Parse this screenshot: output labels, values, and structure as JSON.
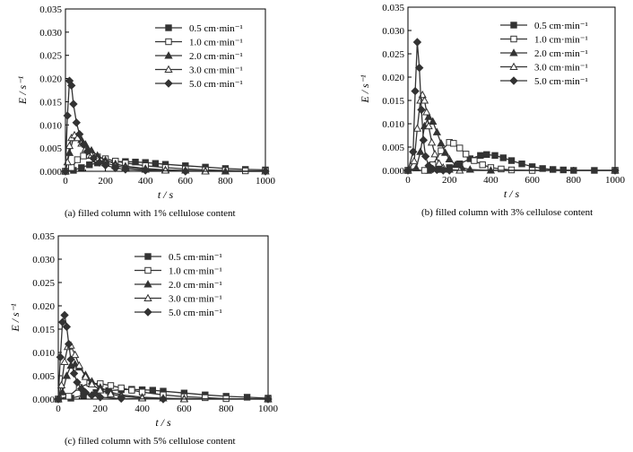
{
  "chart_data": [
    {
      "type": "line",
      "caption": "(a) filled column with 1% cellulose content",
      "xlabel": "t / s",
      "ylabel": "E / s⁻¹",
      "xlim": [
        0,
        1000
      ],
      "ylim": [
        0,
        0.035
      ],
      "xticks": [
        "0",
        "200",
        "400",
        "600",
        "800",
        "1000"
      ],
      "yticks": [
        "0.000",
        "0.005",
        "0.010",
        "0.015",
        "0.020",
        "0.025",
        "0.030",
        "0.035"
      ],
      "grid": false,
      "legend_position": "top-right",
      "series": [
        {
          "name": "0.5 cm·min⁻¹",
          "marker": "square-filled",
          "x": [
            0,
            40,
            80,
            120,
            160,
            200,
            250,
            300,
            350,
            400,
            450,
            500,
            600,
            700,
            800,
            900,
            1000
          ],
          "y": [
            0,
            0.0002,
            0.0008,
            0.0014,
            0.0018,
            0.002,
            0.0021,
            0.0021,
            0.002,
            0.0019,
            0.0017,
            0.0015,
            0.0012,
            0.0009,
            0.0006,
            0.0004,
            0.0003
          ]
        },
        {
          "name": "1.0 cm·min⁻¹",
          "marker": "square-open",
          "x": [
            0,
            30,
            60,
            90,
            120,
            160,
            200,
            250,
            300,
            400,
            500,
            600,
            700,
            800,
            900,
            1000
          ],
          "y": [
            0,
            0.0008,
            0.0025,
            0.0033,
            0.0034,
            0.0031,
            0.0027,
            0.0022,
            0.0018,
            0.0012,
            0.0008,
            0.0005,
            0.0003,
            0.0002,
            0.0001,
            0.0001
          ]
        },
        {
          "name": "2.0 cm·min⁻¹",
          "marker": "triangle-filled",
          "x": [
            0,
            20,
            40,
            60,
            80,
            100,
            130,
            160,
            200,
            250,
            300,
            400,
            500,
            600,
            700,
            800,
            1000
          ],
          "y": [
            0,
            0.004,
            0.0072,
            0.0075,
            0.0068,
            0.0058,
            0.0045,
            0.0034,
            0.0024,
            0.0016,
            0.0011,
            0.0006,
            0.0003,
            0.0002,
            0.0001,
            0,
            0
          ]
        },
        {
          "name": "3.0 cm·min⁻¹",
          "marker": "triangle-open",
          "x": [
            0,
            10,
            20,
            30,
            45,
            60,
            80,
            100,
            130,
            160,
            200,
            250,
            300,
            400,
            500,
            700,
            1000
          ],
          "y": [
            0,
            0.002,
            0.0055,
            0.0072,
            0.0078,
            0.0072,
            0.006,
            0.0048,
            0.0035,
            0.0026,
            0.0018,
            0.0012,
            0.0008,
            0.0004,
            0.0002,
            0,
            0
          ]
        },
        {
          "name": "5.0 cm·min⁻¹",
          "marker": "diamond-filled",
          "x": [
            0,
            10,
            20,
            30,
            40,
            55,
            70,
            90,
            110,
            140,
            170,
            200,
            250,
            300,
            400,
            600,
            1000
          ],
          "y": [
            0,
            0.012,
            0.0195,
            0.0185,
            0.0145,
            0.0105,
            0.008,
            0.0058,
            0.0043,
            0.0028,
            0.0019,
            0.0013,
            0.0007,
            0.0004,
            0.0002,
            0,
            0
          ]
        }
      ]
    },
    {
      "type": "line",
      "caption": "(b) filled column with 3% cellulose content",
      "xlabel": "t / s",
      "ylabel": "E / s⁻¹",
      "xlim": [
        0,
        1000
      ],
      "ylim": [
        0,
        0.035
      ],
      "xticks": [
        "0",
        "200",
        "400",
        "600",
        "800",
        "1000"
      ],
      "yticks": [
        "0.000",
        "0.005",
        "0.010",
        "0.015",
        "0.020",
        "0.025",
        "0.030",
        "0.035"
      ],
      "grid": false,
      "legend_position": "top-right",
      "series": [
        {
          "name": "0.5 cm·min⁻¹",
          "marker": "square-filled",
          "x": [
            0,
            100,
            150,
            200,
            250,
            300,
            350,
            380,
            420,
            460,
            500,
            550,
            600,
            650,
            700,
            750,
            800,
            900,
            1000
          ],
          "y": [
            0,
            0,
            0.0002,
            0.0006,
            0.0014,
            0.0025,
            0.0032,
            0.0034,
            0.0032,
            0.0027,
            0.0021,
            0.0014,
            0.0008,
            0.0004,
            0.0002,
            0.0001,
            0,
            0,
            0
          ]
        },
        {
          "name": "1.0 cm·min⁻¹",
          "marker": "square-open",
          "x": [
            0,
            80,
            120,
            160,
            200,
            220,
            250,
            280,
            320,
            360,
            400,
            450,
            500,
            600,
            1000
          ],
          "y": [
            0,
            0,
            0.0012,
            0.0042,
            0.006,
            0.0058,
            0.0048,
            0.0035,
            0.0021,
            0.0012,
            0.0006,
            0.0003,
            0.0001,
            0,
            0
          ]
        },
        {
          "name": "2.0 cm·min⁻¹",
          "marker": "triangle-filled",
          "x": [
            0,
            40,
            60,
            80,
            100,
            120,
            140,
            160,
            180,
            200,
            230,
            260,
            300,
            400,
            1000
          ],
          "y": [
            0,
            0.0005,
            0.004,
            0.0095,
            0.0115,
            0.0105,
            0.0082,
            0.0058,
            0.0038,
            0.0024,
            0.0012,
            0.0006,
            0.0002,
            0,
            0
          ]
        },
        {
          "name": "3.0 cm·min⁻¹",
          "marker": "triangle-open",
          "x": [
            0,
            30,
            45,
            60,
            70,
            80,
            90,
            100,
            115,
            130,
            150,
            170,
            200,
            250,
            1000
          ],
          "y": [
            0,
            0.002,
            0.009,
            0.015,
            0.0162,
            0.015,
            0.0125,
            0.0095,
            0.006,
            0.0035,
            0.0015,
            0.0006,
            0.0002,
            0,
            0
          ]
        },
        {
          "name": "5.0 cm·min⁻¹",
          "marker": "diamond-filled",
          "x": [
            0,
            25,
            35,
            45,
            55,
            65,
            75,
            85,
            100,
            120,
            140,
            170,
            200,
            1000
          ],
          "y": [
            0,
            0.004,
            0.017,
            0.0275,
            0.022,
            0.013,
            0.0065,
            0.003,
            0.001,
            0.0003,
            0.0001,
            0,
            0,
            0
          ]
        }
      ]
    },
    {
      "type": "line",
      "caption": "(c) filled column with 5% cellulose content",
      "xlabel": "t / s",
      "ylabel": "E / s⁻¹",
      "xlim": [
        0,
        1000
      ],
      "ylim": [
        0,
        0.035
      ],
      "xticks": [
        "0",
        "200",
        "400",
        "600",
        "800",
        "1000"
      ],
      "yticks": [
        "0.000",
        "0.005",
        "0.010",
        "0.015",
        "0.020",
        "0.025",
        "0.030",
        "0.035"
      ],
      "grid": false,
      "legend_position": "top-right",
      "series": [
        {
          "name": "0.5 cm·min⁻¹",
          "marker": "square-filled",
          "x": [
            0,
            60,
            120,
            180,
            240,
            300,
            350,
            400,
            450,
            500,
            600,
            700,
            800,
            900,
            1000
          ],
          "y": [
            0,
            0.0002,
            0.0008,
            0.0014,
            0.0018,
            0.002,
            0.0021,
            0.002,
            0.0019,
            0.0017,
            0.0013,
            0.0009,
            0.0006,
            0.0004,
            0.0002
          ]
        },
        {
          "name": "1.0 cm·min⁻¹",
          "marker": "square-open",
          "x": [
            0,
            50,
            100,
            150,
            200,
            250,
            300,
            350,
            400,
            500,
            600,
            700,
            800,
            1000
          ],
          "y": [
            0,
            0.0006,
            0.0025,
            0.0034,
            0.0033,
            0.0029,
            0.0024,
            0.0019,
            0.0015,
            0.0009,
            0.0005,
            0.0003,
            0.0001,
            0
          ]
        },
        {
          "name": "2.0 cm·min⁻¹",
          "marker": "triangle-filled",
          "x": [
            0,
            20,
            40,
            60,
            80,
            100,
            130,
            160,
            200,
            250,
            300,
            400,
            500,
            600,
            1000
          ],
          "y": [
            0,
            0.0015,
            0.005,
            0.0072,
            0.0075,
            0.0068,
            0.0052,
            0.0038,
            0.0025,
            0.0015,
            0.0009,
            0.0004,
            0.0002,
            0.0001,
            0
          ]
        },
        {
          "name": "3.0 cm·min⁻¹",
          "marker": "triangle-open",
          "x": [
            0,
            15,
            30,
            45,
            60,
            80,
            100,
            130,
            160,
            200,
            250,
            300,
            400,
            600,
            1000
          ],
          "y": [
            0,
            0.003,
            0.008,
            0.0112,
            0.0115,
            0.0095,
            0.0072,
            0.0048,
            0.0032,
            0.0019,
            0.0011,
            0.0006,
            0.0002,
            0,
            0
          ]
        },
        {
          "name": "5.0 cm·min⁻¹",
          "marker": "diamond-filled",
          "x": [
            0,
            10,
            20,
            30,
            40,
            50,
            60,
            75,
            90,
            110,
            130,
            160,
            200,
            300,
            500,
            1000
          ],
          "y": [
            0,
            0.009,
            0.0165,
            0.018,
            0.0155,
            0.0118,
            0.0085,
            0.0055,
            0.0036,
            0.0022,
            0.0014,
            0.0008,
            0.0004,
            0.0001,
            0,
            0
          ]
        }
      ]
    }
  ]
}
